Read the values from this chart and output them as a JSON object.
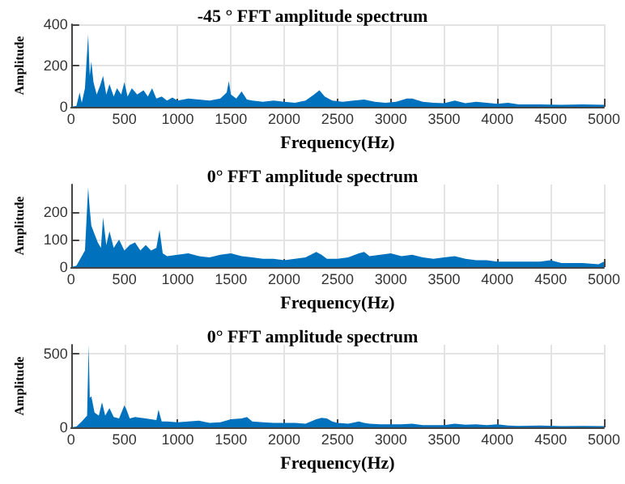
{
  "chart_data": [
    {
      "type": "area",
      "title": "-45 ° FFT amplitude spectrum",
      "xlabel": "Frequency(Hz)",
      "ylabel": "Amplitude",
      "color": "#0072bd",
      "grid": true,
      "xlim": [
        0,
        5000
      ],
      "xticks": [
        0,
        500,
        1000,
        1500,
        2000,
        2500,
        3000,
        3500,
        4000,
        4500,
        5000
      ],
      "ylim": [
        0,
        400
      ],
      "yticks": [
        0,
        200,
        400
      ],
      "x": [
        0,
        50,
        80,
        100,
        130,
        160,
        175,
        190,
        210,
        240,
        270,
        300,
        330,
        360,
        400,
        430,
        470,
        500,
        530,
        570,
        620,
        680,
        720,
        760,
        800,
        850,
        900,
        950,
        1000,
        1100,
        1200,
        1300,
        1400,
        1460,
        1480,
        1500,
        1550,
        1600,
        1650,
        1700,
        1800,
        1900,
        2000,
        2100,
        2200,
        2280,
        2330,
        2380,
        2450,
        2550,
        2650,
        2750,
        2850,
        2950,
        3050,
        3150,
        3200,
        3300,
        3400,
        3500,
        3600,
        3700,
        3800,
        3900,
        4000,
        4100,
        4200,
        4400,
        4600,
        4800,
        5000
      ],
      "values": [
        0,
        5,
        70,
        20,
        90,
        350,
        150,
        220,
        120,
        60,
        100,
        150,
        60,
        110,
        50,
        90,
        60,
        120,
        50,
        90,
        60,
        80,
        50,
        90,
        40,
        50,
        30,
        45,
        30,
        40,
        35,
        30,
        40,
        70,
        125,
        60,
        40,
        75,
        35,
        30,
        25,
        30,
        25,
        20,
        30,
        60,
        80,
        50,
        30,
        25,
        30,
        35,
        25,
        20,
        25,
        40,
        40,
        25,
        20,
        18,
        30,
        18,
        25,
        20,
        15,
        20,
        12,
        12,
        10,
        12,
        10
      ]
    },
    {
      "type": "area",
      "title": "0° FFT amplitude spectrum",
      "xlabel": "Frequency(Hz)",
      "ylabel": "Amplitude",
      "color": "#0072bd",
      "grid": true,
      "xlim": [
        0,
        5000
      ],
      "xticks": [
        0,
        500,
        1000,
        1500,
        2000,
        2500,
        3000,
        3500,
        4000,
        4500,
        5000
      ],
      "ylim": [
        0,
        300
      ],
      "yticks": [
        0,
        100,
        200
      ],
      "x": [
        0,
        50,
        100,
        130,
        160,
        175,
        190,
        220,
        250,
        280,
        300,
        330,
        360,
        400,
        450,
        500,
        550,
        600,
        650,
        700,
        750,
        800,
        830,
        860,
        900,
        1000,
        1100,
        1200,
        1300,
        1400,
        1500,
        1600,
        1700,
        1800,
        1900,
        2000,
        2100,
        2200,
        2300,
        2350,
        2400,
        2500,
        2600,
        2700,
        2750,
        2800,
        2900,
        3000,
        3100,
        3200,
        3300,
        3400,
        3500,
        3600,
        3700,
        3800,
        3900,
        4000,
        4200,
        4400,
        4500,
        4600,
        4800,
        4950,
        5000
      ],
      "values": [
        0,
        5,
        40,
        60,
        290,
        210,
        150,
        120,
        90,
        70,
        180,
        80,
        130,
        70,
        100,
        60,
        80,
        90,
        60,
        80,
        60,
        70,
        135,
        50,
        40,
        45,
        50,
        40,
        35,
        45,
        50,
        40,
        35,
        30,
        30,
        25,
        30,
        35,
        55,
        45,
        30,
        30,
        35,
        50,
        55,
        40,
        45,
        50,
        40,
        45,
        35,
        30,
        35,
        40,
        30,
        25,
        25,
        20,
        20,
        20,
        25,
        15,
        15,
        10,
        20
      ]
    },
    {
      "type": "area",
      "title": "0° FFT amplitude spectrum",
      "xlabel": "Frequency(Hz)",
      "ylabel": "Amplitude",
      "color": "#0072bd",
      "grid": true,
      "xlim": [
        0,
        5000
      ],
      "xticks": [
        0,
        500,
        1000,
        1500,
        2000,
        2500,
        3000,
        3500,
        4000,
        4500,
        5000
      ],
      "ylim": [
        0,
        560
      ],
      "yticks": [
        0,
        500
      ],
      "x": [
        0,
        50,
        100,
        150,
        165,
        175,
        190,
        220,
        260,
        290,
        320,
        360,
        400,
        450,
        500,
        520,
        550,
        600,
        700,
        800,
        820,
        850,
        900,
        1000,
        1100,
        1200,
        1300,
        1400,
        1500,
        1600,
        1650,
        1700,
        1800,
        1900,
        2000,
        2100,
        2200,
        2300,
        2350,
        2400,
        2450,
        2500,
        2600,
        2700,
        2750,
        2800,
        2900,
        3000,
        3100,
        3200,
        3300,
        3400,
        3500,
        3600,
        3700,
        3800,
        3900,
        4000,
        4100,
        4200,
        4400,
        4600,
        4800,
        5000
      ],
      "values": [
        0,
        5,
        40,
        80,
        560,
        200,
        210,
        100,
        80,
        170,
        80,
        130,
        70,
        60,
        150,
        120,
        60,
        70,
        60,
        50,
        120,
        40,
        40,
        35,
        40,
        45,
        30,
        35,
        55,
        60,
        70,
        40,
        35,
        30,
        30,
        30,
        25,
        55,
        65,
        60,
        40,
        30,
        25,
        40,
        30,
        25,
        20,
        20,
        20,
        25,
        15,
        15,
        15,
        25,
        18,
        20,
        15,
        20,
        12,
        10,
        12,
        8,
        10,
        8
      ]
    }
  ]
}
